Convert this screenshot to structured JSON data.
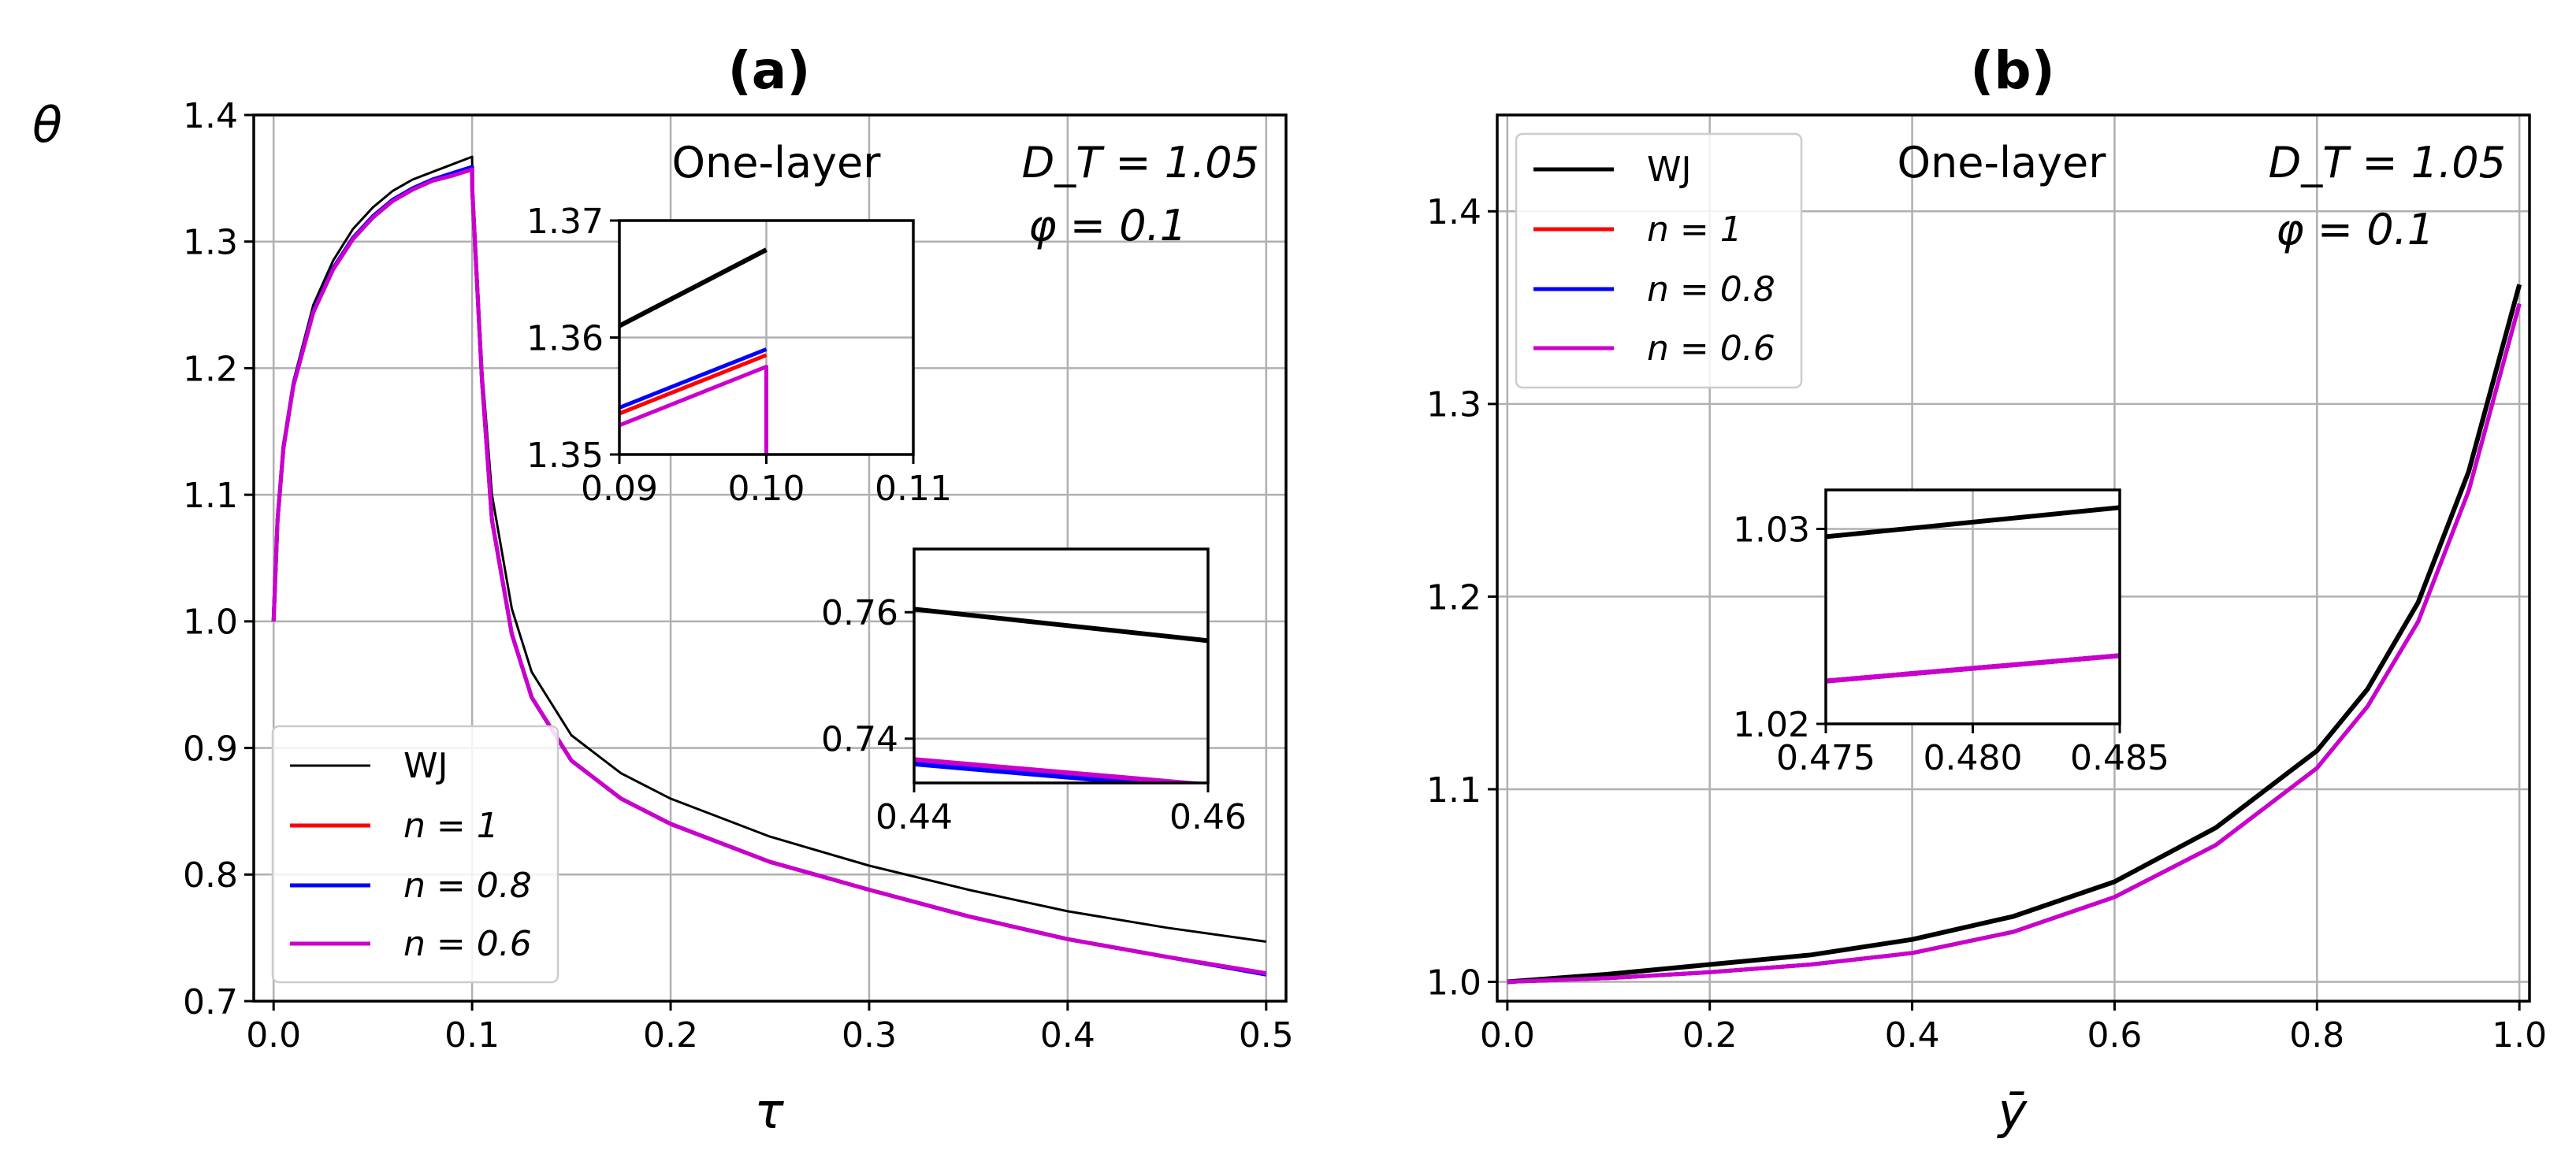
{
  "colors": {
    "WJ": "#000000",
    "n1": "#ff0000",
    "n08": "#0000ff",
    "n06": "#cc00cc"
  },
  "chart_data": [
    {
      "id": "a",
      "type": "line",
      "title": "(a)",
      "xlabel": "τ",
      "ylabel": "θ",
      "xlim": [
        -0.01,
        0.51
      ],
      "ylim": [
        0.7,
        1.4
      ],
      "xticks": [
        "0.0",
        "0.1",
        "0.2",
        "0.3",
        "0.4",
        "0.5"
      ],
      "yticks": [
        "0.7",
        "0.8",
        "0.9",
        "1.0",
        "1.1",
        "1.2",
        "1.3",
        "1.4"
      ],
      "annotations": {
        "layer": "One-layer",
        "dt": "D_T = 1.05",
        "phi": "φ = 0.1"
      },
      "legend": {
        "position": "lower-left",
        "entries": [
          "WJ",
          "n = 1",
          "n = 0.8",
          "n = 0.6"
        ]
      },
      "series": [
        {
          "name": "WJ",
          "color": "#000000",
          "x": [
            0,
            0.002,
            0.005,
            0.01,
            0.02,
            0.03,
            0.04,
            0.05,
            0.06,
            0.07,
            0.08,
            0.09,
            0.1,
            0.1001,
            0.105,
            0.11,
            0.12,
            0.13,
            0.15,
            0.175,
            0.2,
            0.25,
            0.3,
            0.35,
            0.4,
            0.45,
            0.5
          ],
          "y": [
            1.0,
            1.08,
            1.14,
            1.19,
            1.25,
            1.285,
            1.31,
            1.327,
            1.34,
            1.349,
            1.355,
            1.361,
            1.367,
            1.35,
            1.2,
            1.1,
            1.01,
            0.96,
            0.91,
            0.88,
            0.86,
            0.83,
            0.807,
            0.788,
            0.771,
            0.758,
            0.747
          ]
        },
        {
          "name": "n = 1",
          "color": "#ff0000",
          "x": [
            0,
            0.002,
            0.005,
            0.01,
            0.02,
            0.03,
            0.04,
            0.05,
            0.06,
            0.07,
            0.08,
            0.09,
            0.1,
            0.1001,
            0.105,
            0.11,
            0.12,
            0.13,
            0.15,
            0.175,
            0.2,
            0.25,
            0.3,
            0.35,
            0.4,
            0.45,
            0.5
          ],
          "y": [
            1.0,
            1.08,
            1.138,
            1.187,
            1.245,
            1.279,
            1.303,
            1.32,
            1.333,
            1.342,
            1.349,
            1.353,
            1.358,
            1.34,
            1.19,
            1.08,
            0.99,
            0.94,
            0.89,
            0.86,
            0.84,
            0.81,
            0.788,
            0.767,
            0.749,
            0.735,
            0.722
          ]
        },
        {
          "name": "n = 0.8",
          "color": "#0000ff",
          "x": [
            0,
            0.002,
            0.005,
            0.01,
            0.02,
            0.03,
            0.04,
            0.05,
            0.06,
            0.07,
            0.08,
            0.09,
            0.1,
            0.1001,
            0.105,
            0.11,
            0.12,
            0.13,
            0.15,
            0.175,
            0.2,
            0.25,
            0.3,
            0.35,
            0.4,
            0.45,
            0.5
          ],
          "y": [
            1.0,
            1.08,
            1.138,
            1.187,
            1.245,
            1.279,
            1.303,
            1.32,
            1.333,
            1.342,
            1.349,
            1.354,
            1.359,
            1.34,
            1.19,
            1.08,
            0.99,
            0.94,
            0.89,
            0.86,
            0.84,
            0.81,
            0.788,
            0.767,
            0.749,
            0.735,
            0.721
          ]
        },
        {
          "name": "n = 0.6",
          "color": "#cc00cc",
          "x": [
            0,
            0.002,
            0.005,
            0.01,
            0.02,
            0.03,
            0.04,
            0.05,
            0.06,
            0.07,
            0.08,
            0.09,
            0.1,
            0.1001,
            0.105,
            0.11,
            0.12,
            0.13,
            0.15,
            0.175,
            0.2,
            0.25,
            0.3,
            0.35,
            0.4,
            0.45,
            0.5
          ],
          "y": [
            1.0,
            1.08,
            1.137,
            1.186,
            1.244,
            1.278,
            1.302,
            1.319,
            1.332,
            1.341,
            1.348,
            1.352,
            1.357,
            1.34,
            1.19,
            1.08,
            0.99,
            0.94,
            0.89,
            0.86,
            0.84,
            0.81,
            0.788,
            0.767,
            0.749,
            0.735,
            0.722
          ]
        }
      ],
      "insets": [
        {
          "id": "a-inset1",
          "xlim": [
            0.09,
            0.11
          ],
          "ylim": [
            1.35,
            1.37
          ],
          "xticks": [
            "0.09",
            "0.10",
            "0.11"
          ],
          "yticks": [
            "1.35",
            "1.36",
            "1.37"
          ],
          "series": [
            {
              "name": "WJ",
              "color": "#000000",
              "x": [
                0.09,
                0.1,
                0.1,
                0.1
              ],
              "y": [
                1.361,
                1.3675,
                1.3675,
                1.3675
              ]
            },
            {
              "name": "n = 1",
              "color": "#ff0000",
              "x": [
                0.09,
                0.1,
                0.1,
                0.1
              ],
              "y": [
                1.3535,
                1.3585,
                1.3585,
                1.3585
              ]
            },
            {
              "name": "n = 0.8",
              "color": "#0000ff",
              "x": [
                0.09,
                0.1,
                0.1,
                0.1
              ],
              "y": [
                1.354,
                1.359,
                1.359,
                1.359
              ]
            },
            {
              "name": "n = 0.6",
              "color": "#cc00cc",
              "x": [
                0.09,
                0.1,
                0.1,
                0.1
              ],
              "y": [
                1.3525,
                1.3575,
                1.35,
                1.35
              ]
            }
          ]
        },
        {
          "id": "a-inset2",
          "xlim": [
            0.44,
            0.46
          ],
          "ylim": [
            0.733,
            0.77
          ],
          "xticks": [
            "0.44",
            "0.46"
          ],
          "yticks": [
            "0.74",
            "0.76"
          ],
          "series": [
            {
              "name": "WJ",
              "color": "#000000",
              "x": [
                0.44,
                0.46
              ],
              "y": [
                0.7605,
                0.7555
              ]
            },
            {
              "name": "n = 1",
              "color": "#ff0000",
              "x": [
                0.44,
                0.46
              ],
              "y": [
                0.7365,
                0.7325
              ]
            },
            {
              "name": "n = 0.8",
              "color": "#0000ff",
              "x": [
                0.44,
                0.46
              ],
              "y": [
                0.736,
                0.732
              ]
            },
            {
              "name": "n = 0.6",
              "color": "#cc00cc",
              "x": [
                0.44,
                0.46
              ],
              "y": [
                0.7367,
                0.7327
              ]
            }
          ]
        }
      ]
    },
    {
      "id": "b",
      "type": "line",
      "title": "(b)",
      "xlabel": "ȳ",
      "ylabel": "",
      "xlim": [
        -0.01,
        1.01
      ],
      "ylim": [
        0.99,
        1.45
      ],
      "xticks": [
        "0.0",
        "0.2",
        "0.4",
        "0.6",
        "0.8",
        "1.0"
      ],
      "yticks": [
        "1.0",
        "1.1",
        "1.2",
        "1.3",
        "1.4"
      ],
      "annotations": {
        "layer": "One-layer",
        "dt": "D_T = 1.05",
        "phi": "φ = 0.1"
      },
      "legend": {
        "position": "upper-left",
        "entries": [
          "WJ",
          "n = 1",
          "n = 0.8",
          "n = 0.6"
        ]
      },
      "series": [
        {
          "name": "WJ",
          "color": "#000000",
          "x": [
            0,
            0.1,
            0.2,
            0.3,
            0.4,
            0.5,
            0.6,
            0.7,
            0.8,
            0.85,
            0.9,
            0.95,
            1.0
          ],
          "y": [
            1.0,
            1.004,
            1.009,
            1.014,
            1.022,
            1.034,
            1.052,
            1.08,
            1.12,
            1.152,
            1.197,
            1.265,
            1.362
          ]
        },
        {
          "name": "n = 1",
          "color": "#ff0000",
          "x": [
            0,
            0.1,
            0.2,
            0.3,
            0.4,
            0.5,
            0.6,
            0.7,
            0.8,
            0.85,
            0.9,
            0.95,
            1.0
          ],
          "y": [
            1.0,
            1.002,
            1.005,
            1.009,
            1.015,
            1.026,
            1.044,
            1.071,
            1.111,
            1.143,
            1.187,
            1.255,
            1.352
          ]
        },
        {
          "name": "n = 0.8",
          "color": "#0000ff",
          "x": [
            0,
            0.1,
            0.2,
            0.3,
            0.4,
            0.5,
            0.6,
            0.7,
            0.8,
            0.85,
            0.9,
            0.95,
            1.0
          ],
          "y": [
            1.0,
            1.002,
            1.005,
            1.009,
            1.015,
            1.026,
            1.044,
            1.071,
            1.111,
            1.143,
            1.187,
            1.255,
            1.352
          ]
        },
        {
          "name": "n = 0.6",
          "color": "#cc00cc",
          "x": [
            0,
            0.1,
            0.2,
            0.3,
            0.4,
            0.5,
            0.6,
            0.7,
            0.8,
            0.85,
            0.9,
            0.95,
            1.0
          ],
          "y": [
            1.0,
            1.002,
            1.005,
            1.009,
            1.015,
            1.026,
            1.044,
            1.071,
            1.111,
            1.143,
            1.187,
            1.255,
            1.352
          ]
        }
      ],
      "insets": [
        {
          "id": "b-inset1",
          "xlim": [
            0.475,
            0.485
          ],
          "ylim": [
            1.02,
            1.032
          ],
          "xticks": [
            "0.475",
            "0.480",
            "0.485"
          ],
          "yticks": [
            "1.02",
            "1.03"
          ],
          "series": [
            {
              "name": "WJ",
              "color": "#000000",
              "x": [
                0.475,
                0.485
              ],
              "y": [
                1.0296,
                1.0311
              ]
            },
            {
              "name": "n = 1",
              "color": "#ff0000",
              "x": [
                0.475,
                0.485
              ],
              "y": [
                1.0222,
                1.0235
              ]
            },
            {
              "name": "n = 0.8",
              "color": "#0000ff",
              "x": [
                0.475,
                0.485
              ],
              "y": [
                1.0222,
                1.0235
              ]
            },
            {
              "name": "n = 0.6",
              "color": "#cc00cc",
              "x": [
                0.475,
                0.485
              ],
              "y": [
                1.0222,
                1.0235
              ]
            }
          ]
        }
      ]
    }
  ]
}
